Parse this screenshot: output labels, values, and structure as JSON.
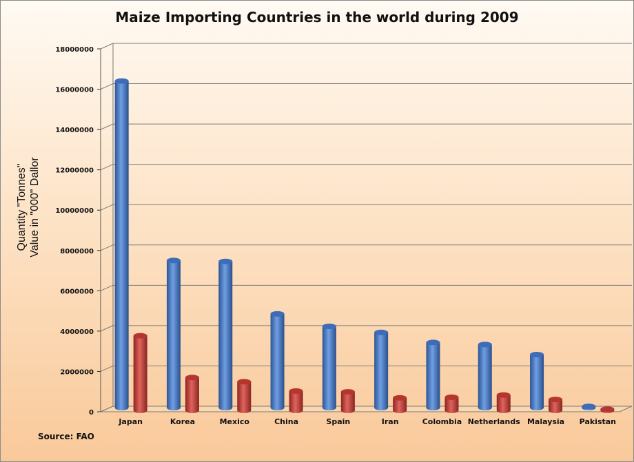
{
  "chart_data": {
    "type": "bar",
    "title": "Maize Importing Countries in the world during 2009",
    "ylabel_lines": [
      "Quantity \"Tonnes\"",
      "Value in \"000\" Dallor"
    ],
    "source": "Source: FAO",
    "categories": [
      "Japan",
      "Korea",
      "Mexico",
      "China",
      "Spain",
      "Iran",
      "Colombia",
      "Netherlands",
      "Malaysia",
      "Pakistan"
    ],
    "series": [
      {
        "values": [
          16200000,
          7300000,
          7250000,
          4650000,
          4030000,
          3730000,
          3230000,
          3130000,
          2630000,
          60000
        ]
      },
      {
        "values": [
          3700000,
          1630000,
          1420000,
          960000,
          920000,
          620000,
          650000,
          760000,
          540000,
          60000
        ]
      }
    ],
    "colors": [
      "#4a7cc6",
      "#c9403b"
    ],
    "ylim": [
      0,
      18000000
    ],
    "yticks": [
      "0",
      "2000000",
      "4000000",
      "6000000",
      "8000000",
      "10000000",
      "12000000",
      "14000000",
      "16000000",
      "18000000"
    ],
    "grid": true,
    "legend": "none"
  }
}
